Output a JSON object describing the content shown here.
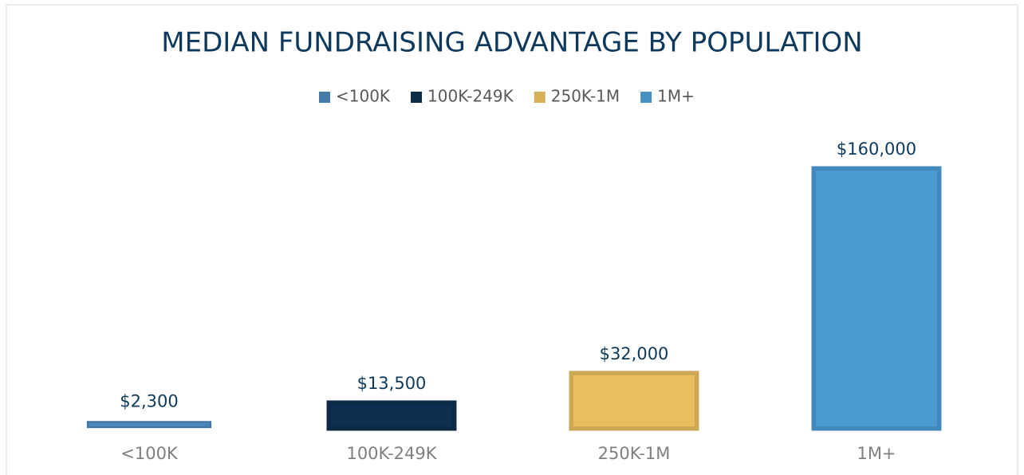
{
  "chart_data": {
    "type": "bar",
    "title": "MEDIAN FUNDRAISING ADVANTAGE BY POPULATION",
    "categories": [
      "<100K",
      "100K-249K",
      "250K-1M",
      "1M+"
    ],
    "values": [
      2300,
      13500,
      32000,
      160000
    ],
    "value_labels": [
      "$2,300",
      "$13,500",
      "$32,000",
      "$160,000"
    ],
    "colors": [
      "#4a86b8",
      "#0d3050",
      "#e8bf5f",
      "#4b9bd3"
    ],
    "ylim": [
      0,
      160000
    ],
    "legend": "top"
  }
}
